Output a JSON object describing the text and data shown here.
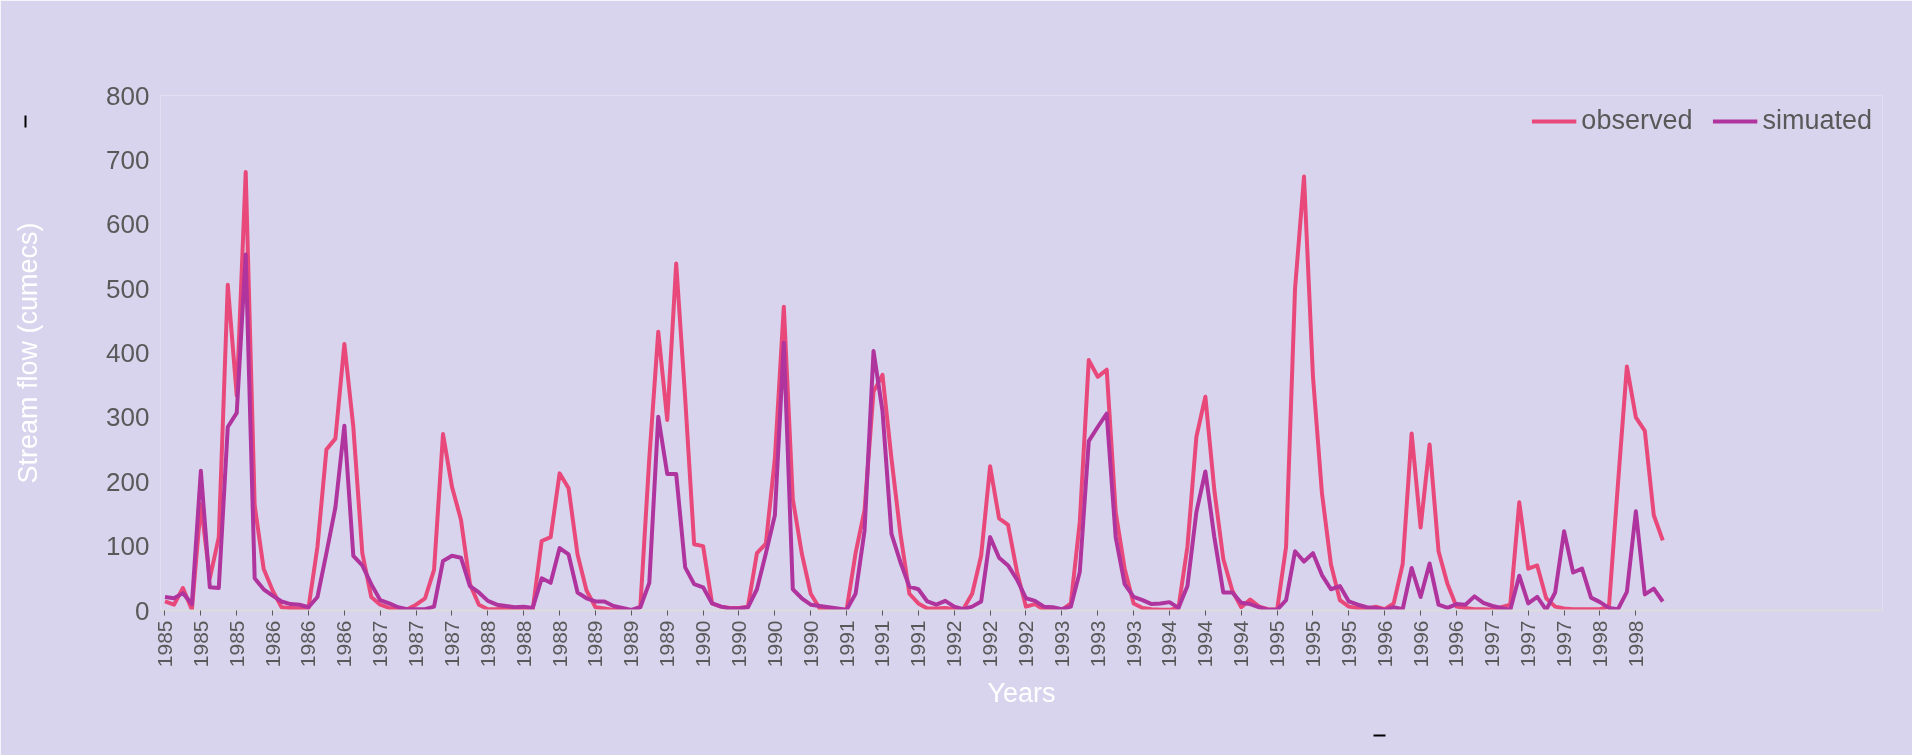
{
  "chart_data": {
    "type": "line",
    "xlabel": "Years",
    "ylabel": "Stream flow (cumecs)",
    "ylim": [
      0,
      800
    ],
    "yticks": [
      0,
      100,
      200,
      300,
      400,
      500,
      600,
      700,
      800
    ],
    "grid": false,
    "legend": "top right",
    "marker": "none",
    "line_style": "solid",
    "categories": [
      "1985",
      null,
      null,
      null,
      "1985",
      null,
      null,
      null,
      "1985",
      null,
      null,
      null,
      "1986",
      null,
      null,
      null,
      "1986",
      null,
      null,
      null,
      "1986",
      null,
      null,
      null,
      "1987",
      null,
      null,
      null,
      "1987",
      null,
      null,
      null,
      "1987",
      null,
      null,
      null,
      "1988",
      null,
      null,
      null,
      "1988",
      null,
      null,
      null,
      "1988",
      null,
      null,
      null,
      "1989",
      null,
      null,
      null,
      "1989",
      null,
      null,
      null,
      "1989",
      null,
      null,
      null,
      "1990",
      null,
      null,
      null,
      "1990",
      null,
      null,
      null,
      "1990",
      null,
      null,
      null,
      "1990",
      null,
      null,
      null,
      "1991",
      null,
      null,
      null,
      "1991",
      null,
      null,
      null,
      "1991",
      null,
      null,
      null,
      "1992",
      null,
      null,
      null,
      "1992",
      null,
      null,
      null,
      "1992",
      null,
      null,
      null,
      "1993",
      null,
      null,
      null,
      "1993",
      null,
      null,
      null,
      "1993",
      null,
      null,
      null,
      "1994",
      null,
      null,
      null,
      "1994",
      null,
      null,
      null,
      "1994",
      null,
      null,
      null,
      "1995",
      null,
      null,
      null,
      "1995",
      null,
      null,
      null,
      "1995",
      null,
      null,
      null,
      "1996",
      null,
      null,
      null,
      "1996",
      null,
      null,
      null,
      "1996",
      null,
      null,
      null,
      "1997",
      null,
      null,
      null,
      "1997",
      null,
      null,
      null,
      "1997",
      null,
      null,
      null,
      "1998",
      null,
      null,
      null,
      "1998",
      null,
      null,
      null,
      null,
      null,
      null,
      null,
      null,
      null,
      null,
      null,
      null,
      null,
      null,
      null,
      null,
      null,
      null,
      null,
      null,
      null,
      null,
      null,
      null,
      null,
      null,
      null
    ],
    "series": [
      {
        "name": "observed",
        "color": "#e8497a",
        "values": [
          14,
          9,
          35,
          1,
          165,
          50,
          114,
          506,
          334,
          681,
          163,
          65,
          31,
          5,
          4,
          3,
          4,
          99,
          250,
          267,
          414,
          285,
          89,
          21,
          9,
          4,
          2,
          2,
          9,
          19,
          63,
          274,
          192,
          141,
          41,
          9,
          2,
          2,
          4,
          1,
          2,
          1,
          108,
          114,
          213,
          190,
          87,
          31,
          5,
          3,
          1,
          0,
          0,
          6,
          236,
          433,
          296,
          539,
          330,
          103,
          100,
          11,
          6,
          4,
          4,
          6,
          89,
          104,
          236,
          472,
          173,
          89,
          26,
          3,
          2,
          2,
          1,
          89,
          156,
          340,
          366,
          236,
          119,
          26,
          11,
          3,
          3,
          4,
          2,
          2,
          26,
          85,
          224,
          143,
          133,
          60,
          6,
          10,
          1,
          1,
          1,
          11,
          138,
          389,
          363,
          374,
          153,
          65,
          11,
          4,
          2,
          1,
          1,
          4,
          99,
          270,
          332,
          187,
          80,
          31,
          5,
          17,
          6,
          2,
          1,
          99,
          500,
          674,
          363,
          182,
          72,
          16,
          6,
          4,
          2,
          6,
          2,
          11,
          72,
          275,
          129,
          258,
          92,
          41,
          6,
          4,
          2,
          2,
          1,
          5,
          9,
          168,
          65,
          70,
          19,
          6,
          3,
          2,
          2,
          2,
          2,
          6,
          196,
          379,
          300,
          279,
          148,
          109,
          null,
          null,
          null,
          null,
          null,
          null,
          null,
          null,
          null,
          null,
          null,
          null,
          null,
          null,
          null,
          null,
          null,
          null,
          null,
          null,
          null,
          null,
          null,
          null
        ]
      },
      {
        "name": "simuated",
        "color": "#b0349e",
        "values": [
          21,
          19,
          27,
          10,
          217,
          36,
          35,
          285,
          307,
          553,
          50,
          33,
          23,
          14,
          10,
          9,
          5,
          21,
          89,
          160,
          287,
          85,
          70,
          41,
          16,
          11,
          5,
          2,
          2,
          2,
          6,
          77,
          85,
          82,
          38,
          28,
          15,
          9,
          7,
          5,
          6,
          4,
          50,
          43,
          97,
          87,
          28,
          19,
          14,
          14,
          7,
          4,
          1,
          5,
          43,
          301,
          212,
          212,
          67,
          41,
          36,
          11,
          6,
          3,
          3,
          5,
          33,
          89,
          148,
          416,
          33,
          19,
          9,
          7,
          5,
          3,
          1,
          26,
          124,
          403,
          310,
          119,
          75,
          37,
          33,
          14,
          9,
          15,
          6,
          2,
          6,
          14,
          114,
          82,
          70,
          48,
          19,
          15,
          6,
          5,
          2,
          6,
          60,
          263,
          285,
          306,
          114,
          41,
          21,
          16,
          10,
          11,
          13,
          4,
          38,
          153,
          216,
          114,
          28,
          28,
          12,
          10,
          5,
          1,
          1,
          16,
          92,
          76,
          89,
          55,
          33,
          38,
          14,
          9,
          5,
          4,
          1,
          5,
          2,
          66,
          21,
          73,
          9,
          4,
          10,
          9,
          22,
          12,
          7,
          4,
          1,
          54,
          11,
          21,
          1,
          28,
          123,
          59,
          65,
          20,
          13,
          4,
          2,
          29,
          154,
          25,
          34,
          14,
          null,
          null,
          null,
          null,
          null,
          null,
          null,
          null,
          null,
          null,
          null,
          null,
          null,
          null,
          null,
          null,
          null,
          null,
          null,
          null,
          null,
          null,
          null,
          null
        ]
      }
    ]
  }
}
